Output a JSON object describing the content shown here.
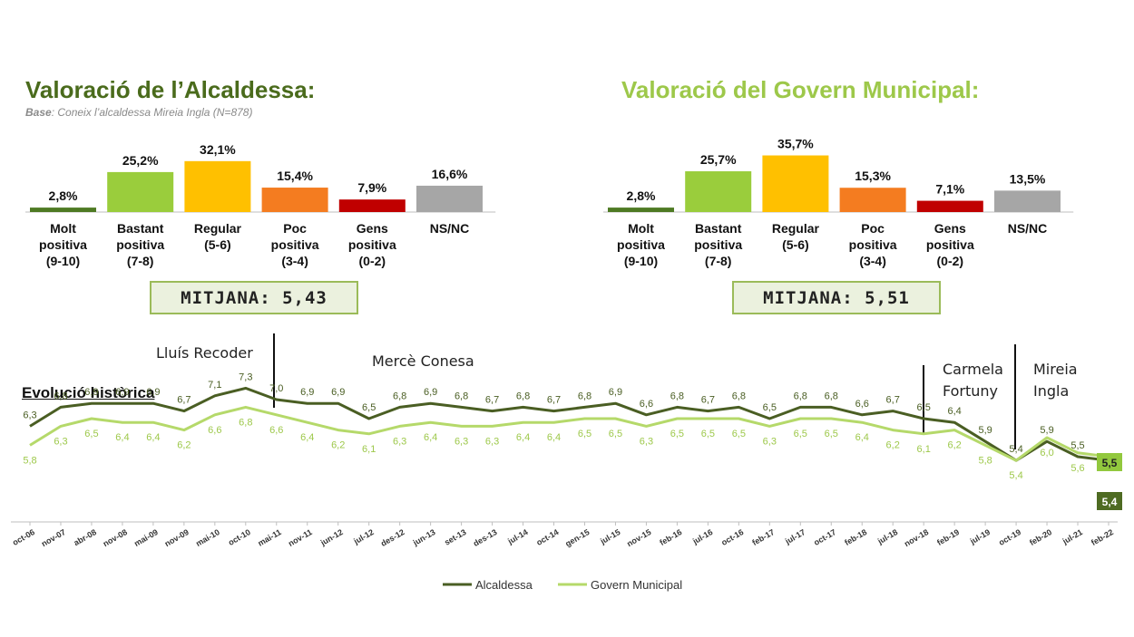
{
  "titles": {
    "left": "Valoració de l’Alcaldessa:",
    "right": "Valoració del Govern Municipal:"
  },
  "base": {
    "label": "Base",
    "text": ": Coneix l’alcaldessa Mireia Ingla (N=878)"
  },
  "categories": [
    "Molt positiva (9-10)",
    "Bastant positiva (7-8)",
    "Regular (5-6)",
    "Poc positiva (3-4)",
    "Gens positiva (0-2)",
    "NS/NC"
  ],
  "category_lines": [
    [
      "Molt",
      "positiva",
      "(9-10)"
    ],
    [
      "Bastant",
      "positiva",
      "(7-8)"
    ],
    [
      "Regular",
      "(5-6)"
    ],
    [
      "Poc",
      "positiva",
      "(3-4)"
    ],
    [
      "Gens",
      "positiva",
      "(0-2)"
    ],
    [
      "NS/NC"
    ]
  ],
  "bar_colors": [
    "#4e7a23",
    "#9acd3c",
    "#ffc000",
    "#f47c20",
    "#c00000",
    "#a6a6a6"
  ],
  "mitjana": {
    "left": "MITJANA: 5,43",
    "right": "MITJANA: 5,51"
  },
  "annotations": {
    "recoder": "Lluís Recoder",
    "conesa": "Mercè Conesa",
    "fortuny": [
      "Carmela",
      "Fortuny"
    ],
    "ingla": [
      "Mireia",
      "Ingla"
    ],
    "evolucio": "Evolució històrica"
  },
  "legend": {
    "alcaldessa": "Alcaldessa",
    "govern": "Govern Municipal"
  },
  "series_colors": {
    "alcaldessa": "#4a5e23",
    "govern": "#b5d96a"
  },
  "chart_data": [
    {
      "type": "bar",
      "title": "Valoració de l’Alcaldessa:",
      "categories": [
        "Molt positiva (9-10)",
        "Bastant positiva (7-8)",
        "Regular (5-6)",
        "Poc positiva (3-4)",
        "Gens positiva (0-2)",
        "NS/NC"
      ],
      "values": [
        2.8,
        25.2,
        32.1,
        15.4,
        7.9,
        16.6
      ],
      "labels": [
        "2,8%",
        "25,2%",
        "32,1%",
        "15,4%",
        "7,9%",
        "16,6%"
      ]
    },
    {
      "type": "bar",
      "title": "Valoració del Govern Municipal:",
      "categories": [
        "Molt positiva (9-10)",
        "Bastant positiva (7-8)",
        "Regular (5-6)",
        "Poc positiva (3-4)",
        "Gens positiva (0-2)",
        "NS/NC"
      ],
      "values": [
        2.8,
        25.7,
        35.7,
        15.3,
        7.1,
        13.5
      ],
      "labels": [
        "2,8%",
        "25,7%",
        "35,7%",
        "15,3%",
        "7,1%",
        "13,5%"
      ]
    },
    {
      "type": "line",
      "title": "Evolució històrica",
      "x": [
        "oct-06",
        "nov-07",
        "abr-08",
        "nov-08",
        "mai-09",
        "nov-09",
        "mai-10",
        "oct-10",
        "mai-11",
        "nov-11",
        "jun-12",
        "jul-12",
        "des-12",
        "jun-13",
        "set-13",
        "des-13",
        "jul-14",
        "oct-14",
        "gen-15",
        "jul-15",
        "nov-15",
        "feb-16",
        "jul-16",
        "oct-16",
        "feb-17",
        "jul-17",
        "oct-17",
        "feb-18",
        "jul-18",
        "nov-18",
        "feb-19",
        "jul-19",
        "oct-19",
        "feb-20",
        "jul-21",
        "feb-22"
      ],
      "series": [
        {
          "name": "Alcaldessa",
          "values": [
            6.3,
            6.8,
            6.9,
            6.9,
            6.9,
            6.7,
            7.1,
            7.3,
            7.0,
            6.9,
            6.9,
            6.5,
            6.8,
            6.9,
            6.8,
            6.7,
            6.8,
            6.7,
            6.8,
            6.9,
            6.6,
            6.8,
            6.7,
            6.8,
            6.5,
            6.8,
            6.8,
            6.6,
            6.7,
            6.5,
            6.4,
            5.9,
            5.4,
            5.9,
            5.5,
            5.4
          ]
        },
        {
          "name": "Govern Municipal",
          "values": [
            5.8,
            6.3,
            6.5,
            6.4,
            6.4,
            6.2,
            6.6,
            6.8,
            6.6,
            6.4,
            6.2,
            6.1,
            6.3,
            6.4,
            6.3,
            6.3,
            6.4,
            6.4,
            6.5,
            6.5,
            6.3,
            6.5,
            6.5,
            6.5,
            6.3,
            6.5,
            6.5,
            6.4,
            6.2,
            6.1,
            6.2,
            5.8,
            5.4,
            6.0,
            5.6,
            5.5
          ]
        }
      ]
    }
  ]
}
